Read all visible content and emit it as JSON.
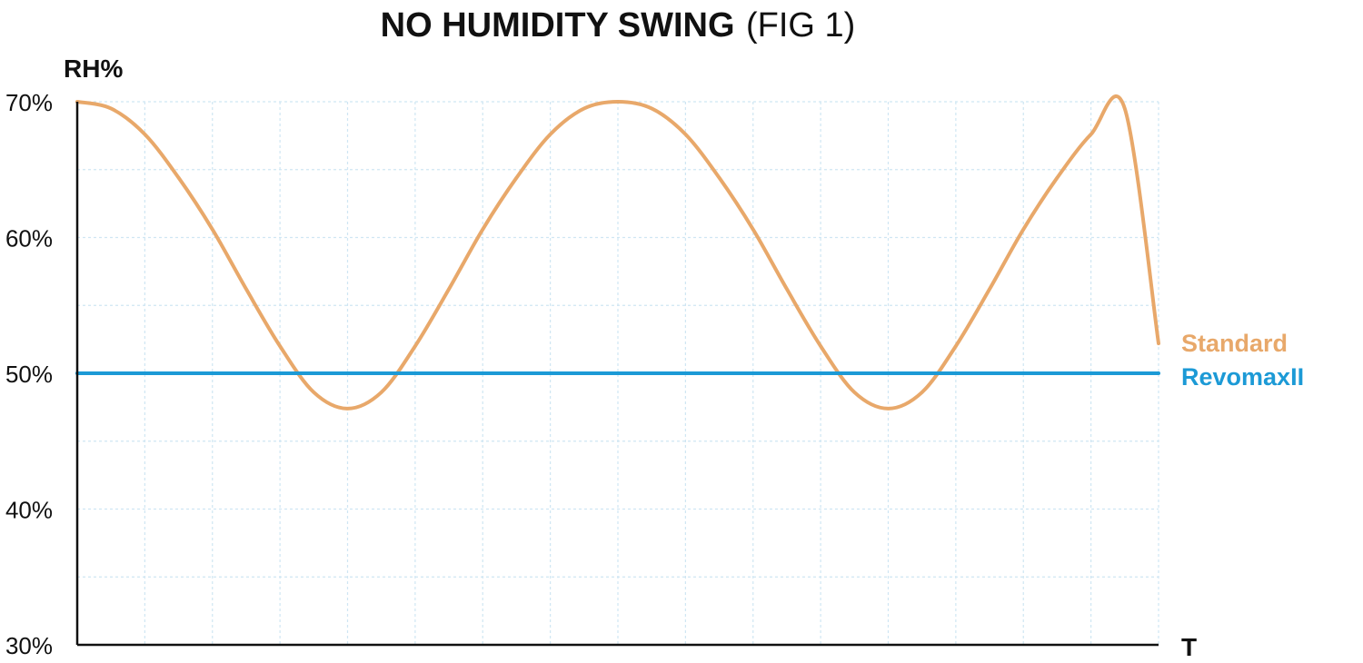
{
  "chart_data": {
    "type": "line",
    "title": "NO HUMIDITY SWING",
    "subtitle": "(FIG 1)",
    "ylabel": "RH%",
    "xlabel": "T",
    "ylim": [
      30,
      70
    ],
    "xlim": [
      0,
      16
    ],
    "yticks": [
      {
        "value": 70,
        "label": "70%"
      },
      {
        "value": 60,
        "label": "60%"
      },
      {
        "value": 50,
        "label": "50%"
      },
      {
        "value": 40,
        "label": "40%"
      },
      {
        "value": 30,
        "label": "30%"
      }
    ],
    "grid": true,
    "series": [
      {
        "name": "Standard",
        "color": "#E8A86A",
        "x": [
          0,
          0.5,
          1,
          1.5,
          2,
          2.5,
          3,
          3.5,
          4,
          4.5,
          5,
          5.5,
          6,
          6.5,
          7,
          7.5,
          8,
          8.5,
          9,
          9.5,
          10,
          10.5,
          11,
          11.5,
          12,
          12.5,
          13,
          13.5,
          14,
          14.5,
          15,
          15.5,
          16
        ],
        "values": [
          70.0,
          69.5,
          67.6,
          64.4,
          60.6,
          56.2,
          52.0,
          48.6,
          47.4,
          48.6,
          52.0,
          56.2,
          60.6,
          64.4,
          67.6,
          69.5,
          70.0,
          69.5,
          67.6,
          64.4,
          60.6,
          56.2,
          52.0,
          48.6,
          47.4,
          48.6,
          52.0,
          56.2,
          60.6,
          64.4,
          67.6,
          69.5,
          52.2
        ]
      },
      {
        "name": "RevomaxII",
        "color": "#1C9AD6",
        "x": [
          0,
          16
        ],
        "values": [
          50,
          50
        ]
      }
    ]
  }
}
